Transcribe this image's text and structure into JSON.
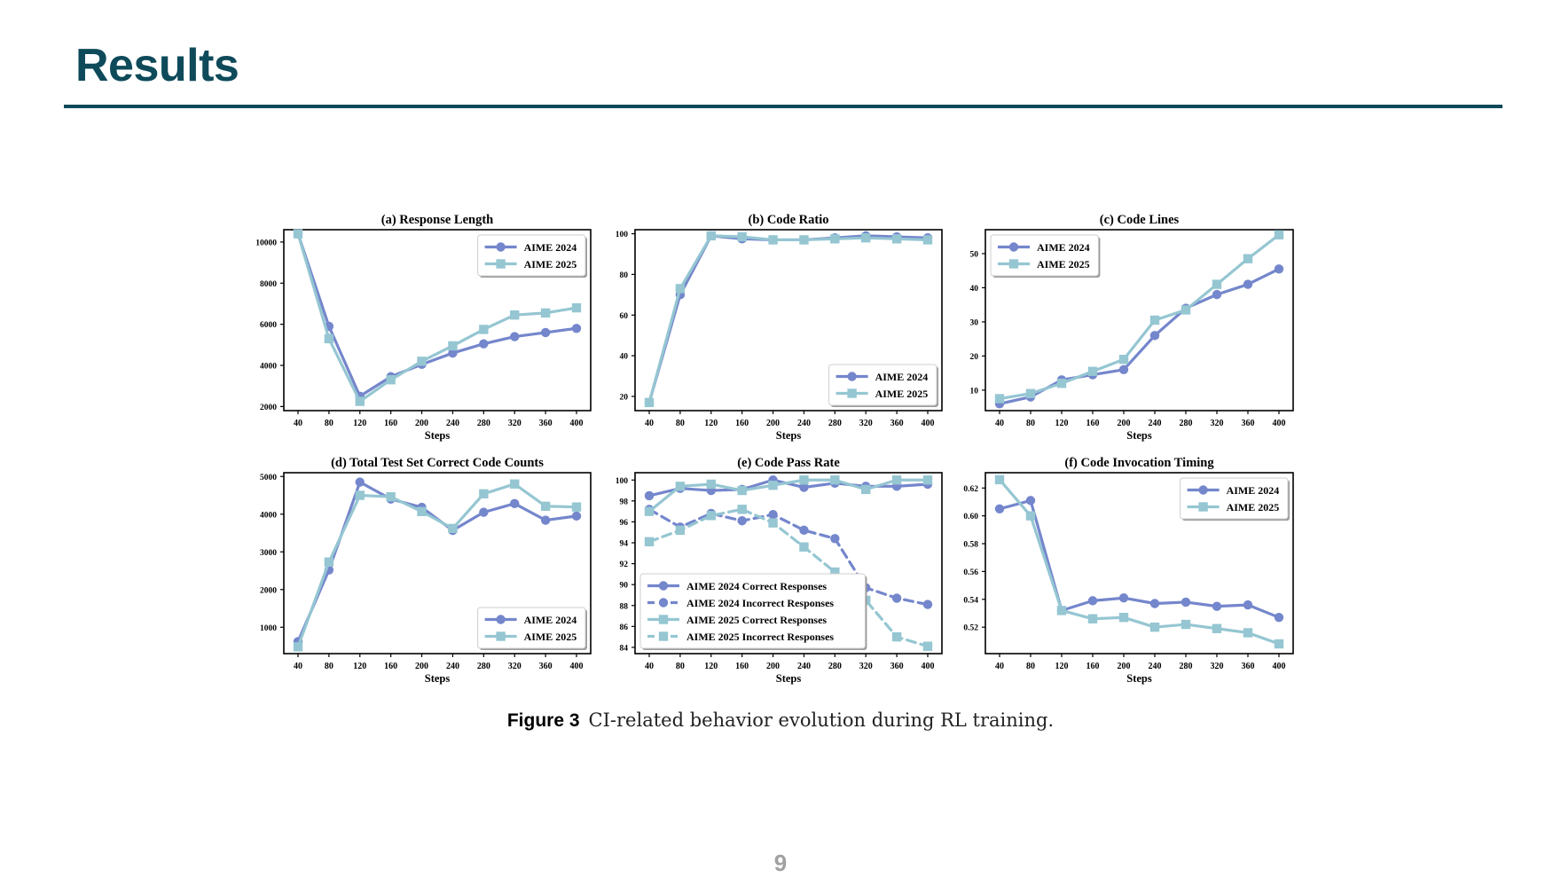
{
  "slide": {
    "title": "Results",
    "page_number": "9"
  },
  "caption": {
    "label": "Figure 3",
    "text": "CI-related behavior evolution during RL training."
  },
  "colors": {
    "title": "#0e4a5a",
    "aime2024": "#7486cc",
    "aime2025": "#95c6d2"
  },
  "chart_data": [
    {
      "id": "a",
      "type": "line",
      "title": "(a) Response Length",
      "xlabel": "Steps",
      "ylabel": "",
      "x": [
        40,
        80,
        120,
        160,
        200,
        240,
        280,
        320,
        360,
        400
      ],
      "ylim": [
        1800,
        10600
      ],
      "yticks": [
        2000,
        4000,
        6000,
        8000,
        10000
      ],
      "legend_position": "upper-right",
      "series": [
        {
          "name": "AIME 2024",
          "marker": "circle",
          "style": "solid",
          "color": "#7486cc",
          "values": [
            10400,
            5900,
            2500,
            3450,
            4050,
            4600,
            5050,
            5400,
            5600,
            5800
          ]
        },
        {
          "name": "AIME 2025",
          "marker": "square",
          "style": "solid",
          "color": "#95c6d2",
          "values": [
            10400,
            5300,
            2250,
            3300,
            4200,
            4950,
            5750,
            6450,
            6550,
            6800
          ]
        }
      ]
    },
    {
      "id": "b",
      "type": "line",
      "title": "(b) Code Ratio",
      "xlabel": "Steps",
      "ylabel": "",
      "x": [
        40,
        80,
        120,
        160,
        200,
        240,
        280,
        320,
        360,
        400
      ],
      "ylim": [
        13,
        102
      ],
      "yticks": [
        20,
        40,
        60,
        80,
        100
      ],
      "legend_position": "lower-right",
      "series": [
        {
          "name": "AIME 2024",
          "marker": "circle",
          "style": "solid",
          "color": "#7486cc",
          "values": [
            17,
            70,
            99,
            97.5,
            97,
            97,
            98,
            99,
            98.5,
            98
          ]
        },
        {
          "name": "AIME 2025",
          "marker": "square",
          "style": "solid",
          "color": "#95c6d2",
          "values": [
            17,
            73,
            99,
            98.5,
            97,
            97,
            97.5,
            98,
            97.5,
            97
          ]
        }
      ]
    },
    {
      "id": "c",
      "type": "line",
      "title": "(c) Code Lines",
      "xlabel": "Steps",
      "ylabel": "",
      "x": [
        40,
        80,
        120,
        160,
        200,
        240,
        280,
        320,
        360,
        400
      ],
      "ylim": [
        4,
        57
      ],
      "yticks": [
        10,
        20,
        30,
        40,
        50
      ],
      "legend_position": "upper-left",
      "series": [
        {
          "name": "AIME 2024",
          "marker": "circle",
          "style": "solid",
          "color": "#7486cc",
          "values": [
            6,
            8,
            13,
            14.5,
            16,
            26,
            34,
            38,
            41,
            45.5
          ]
        },
        {
          "name": "AIME 2025",
          "marker": "square",
          "style": "solid",
          "color": "#95c6d2",
          "values": [
            7.5,
            9,
            12,
            15.5,
            19,
            30.5,
            33.5,
            41,
            48.5,
            55.5
          ]
        }
      ]
    },
    {
      "id": "d",
      "type": "line",
      "title": "(d) Total Test Set Correct Code Counts",
      "xlabel": "Steps",
      "ylabel": "",
      "x": [
        40,
        80,
        120,
        160,
        200,
        240,
        280,
        320,
        360,
        400
      ],
      "ylim": [
        300,
        5100
      ],
      "yticks": [
        1000,
        2000,
        3000,
        4000,
        5000
      ],
      "legend_position": "lower-right",
      "series": [
        {
          "name": "AIME 2024",
          "marker": "circle",
          "style": "solid",
          "color": "#7486cc",
          "values": [
            620,
            2520,
            4850,
            4400,
            4180,
            3570,
            4050,
            4280,
            3840,
            3950
          ]
        },
        {
          "name": "AIME 2025",
          "marker": "square",
          "style": "solid",
          "color": "#95c6d2",
          "values": [
            480,
            2730,
            4500,
            4460,
            4070,
            3620,
            4540,
            4800,
            4210,
            4190
          ]
        }
      ]
    },
    {
      "id": "e",
      "type": "line",
      "title": "(e) Code Pass Rate",
      "xlabel": "Steps",
      "ylabel": "",
      "x": [
        40,
        80,
        120,
        160,
        200,
        240,
        280,
        320,
        360,
        400
      ],
      "ylim": [
        83.4,
        100.7
      ],
      "yticks": [
        84,
        86,
        88,
        90,
        92,
        94,
        96,
        98,
        100
      ],
      "legend_position": "lower-left",
      "series": [
        {
          "name": "AIME 2024 Correct Responses",
          "marker": "circle",
          "style": "solid",
          "color": "#7486cc",
          "values": [
            98.5,
            99.2,
            99,
            99.1,
            100,
            99.3,
            99.7,
            99.4,
            99.4,
            99.6
          ]
        },
        {
          "name": "AIME 2024 Incorrect Responses",
          "marker": "circle",
          "style": "dashed",
          "color": "#7486cc",
          "values": [
            97.2,
            95.5,
            96.8,
            96.1,
            96.7,
            95.2,
            94.4,
            89.7,
            88.7,
            88.1
          ]
        },
        {
          "name": "AIME 2025 Correct Responses",
          "marker": "square",
          "style": "solid",
          "color": "#95c6d2",
          "values": [
            97,
            99.4,
            99.6,
            99,
            99.5,
            100,
            100,
            99.1,
            100,
            100
          ]
        },
        {
          "name": "AIME 2025 Incorrect Responses",
          "marker": "square",
          "style": "dashed",
          "color": "#95c6d2",
          "values": [
            94.1,
            95.2,
            96.6,
            97.2,
            95.9,
            93.6,
            91.2,
            88.5,
            85,
            84.1
          ]
        }
      ]
    },
    {
      "id": "f",
      "type": "line",
      "title": "(f) Code Invocation Timing",
      "xlabel": "Steps",
      "ylabel": "",
      "x": [
        40,
        80,
        120,
        160,
        200,
        240,
        280,
        320,
        360,
        400
      ],
      "ylim": [
        0.501,
        0.631
      ],
      "yticks": [
        0.52,
        0.54,
        0.56,
        0.58,
        0.6,
        0.62
      ],
      "legend_position": "upper-right",
      "series": [
        {
          "name": "AIME 2024",
          "marker": "circle",
          "style": "solid",
          "color": "#7486cc",
          "values": [
            0.605,
            0.611,
            0.532,
            0.539,
            0.541,
            0.537,
            0.538,
            0.535,
            0.536,
            0.527
          ]
        },
        {
          "name": "AIME 2025",
          "marker": "square",
          "style": "solid",
          "color": "#95c6d2",
          "values": [
            0.626,
            0.6,
            0.532,
            0.526,
            0.527,
            0.52,
            0.522,
            0.519,
            0.516,
            0.508
          ]
        }
      ]
    }
  ]
}
